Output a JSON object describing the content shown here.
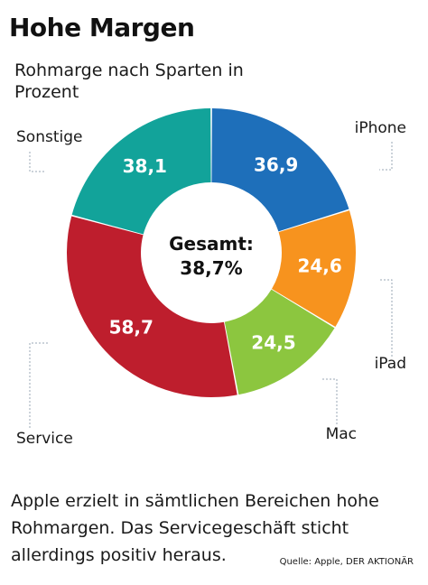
{
  "title": "Hohe Margen",
  "subtitle": "Rohmarge nach Sparten in Prozent",
  "chart_data": {
    "type": "pie",
    "donut": true,
    "center_label_line1": "Gesamt:",
    "center_label_line2": "38,7%",
    "slices": [
      {
        "name": "iPhone",
        "value": 36.9,
        "label": "36,9",
        "color": "#1e6fba"
      },
      {
        "name": "iPad",
        "value": 24.6,
        "label": "24,6",
        "color": "#f7931e"
      },
      {
        "name": "Mac",
        "value": 24.5,
        "label": "24,5",
        "color": "#8cc63f"
      },
      {
        "name": "Service",
        "value": 58.7,
        "label": "58,7",
        "color": "#be1e2d"
      },
      {
        "name": "Sonstige",
        "value": 38.1,
        "label": "38,1",
        "color": "#12a39a"
      }
    ]
  },
  "caption": "Apple erzielt in sämtlichen Bereichen hohe Rohmargen. Das Servicegeschäft sticht allerdings positiv heraus.",
  "source": "Quelle: Apple, DER AKTIONÄR"
}
